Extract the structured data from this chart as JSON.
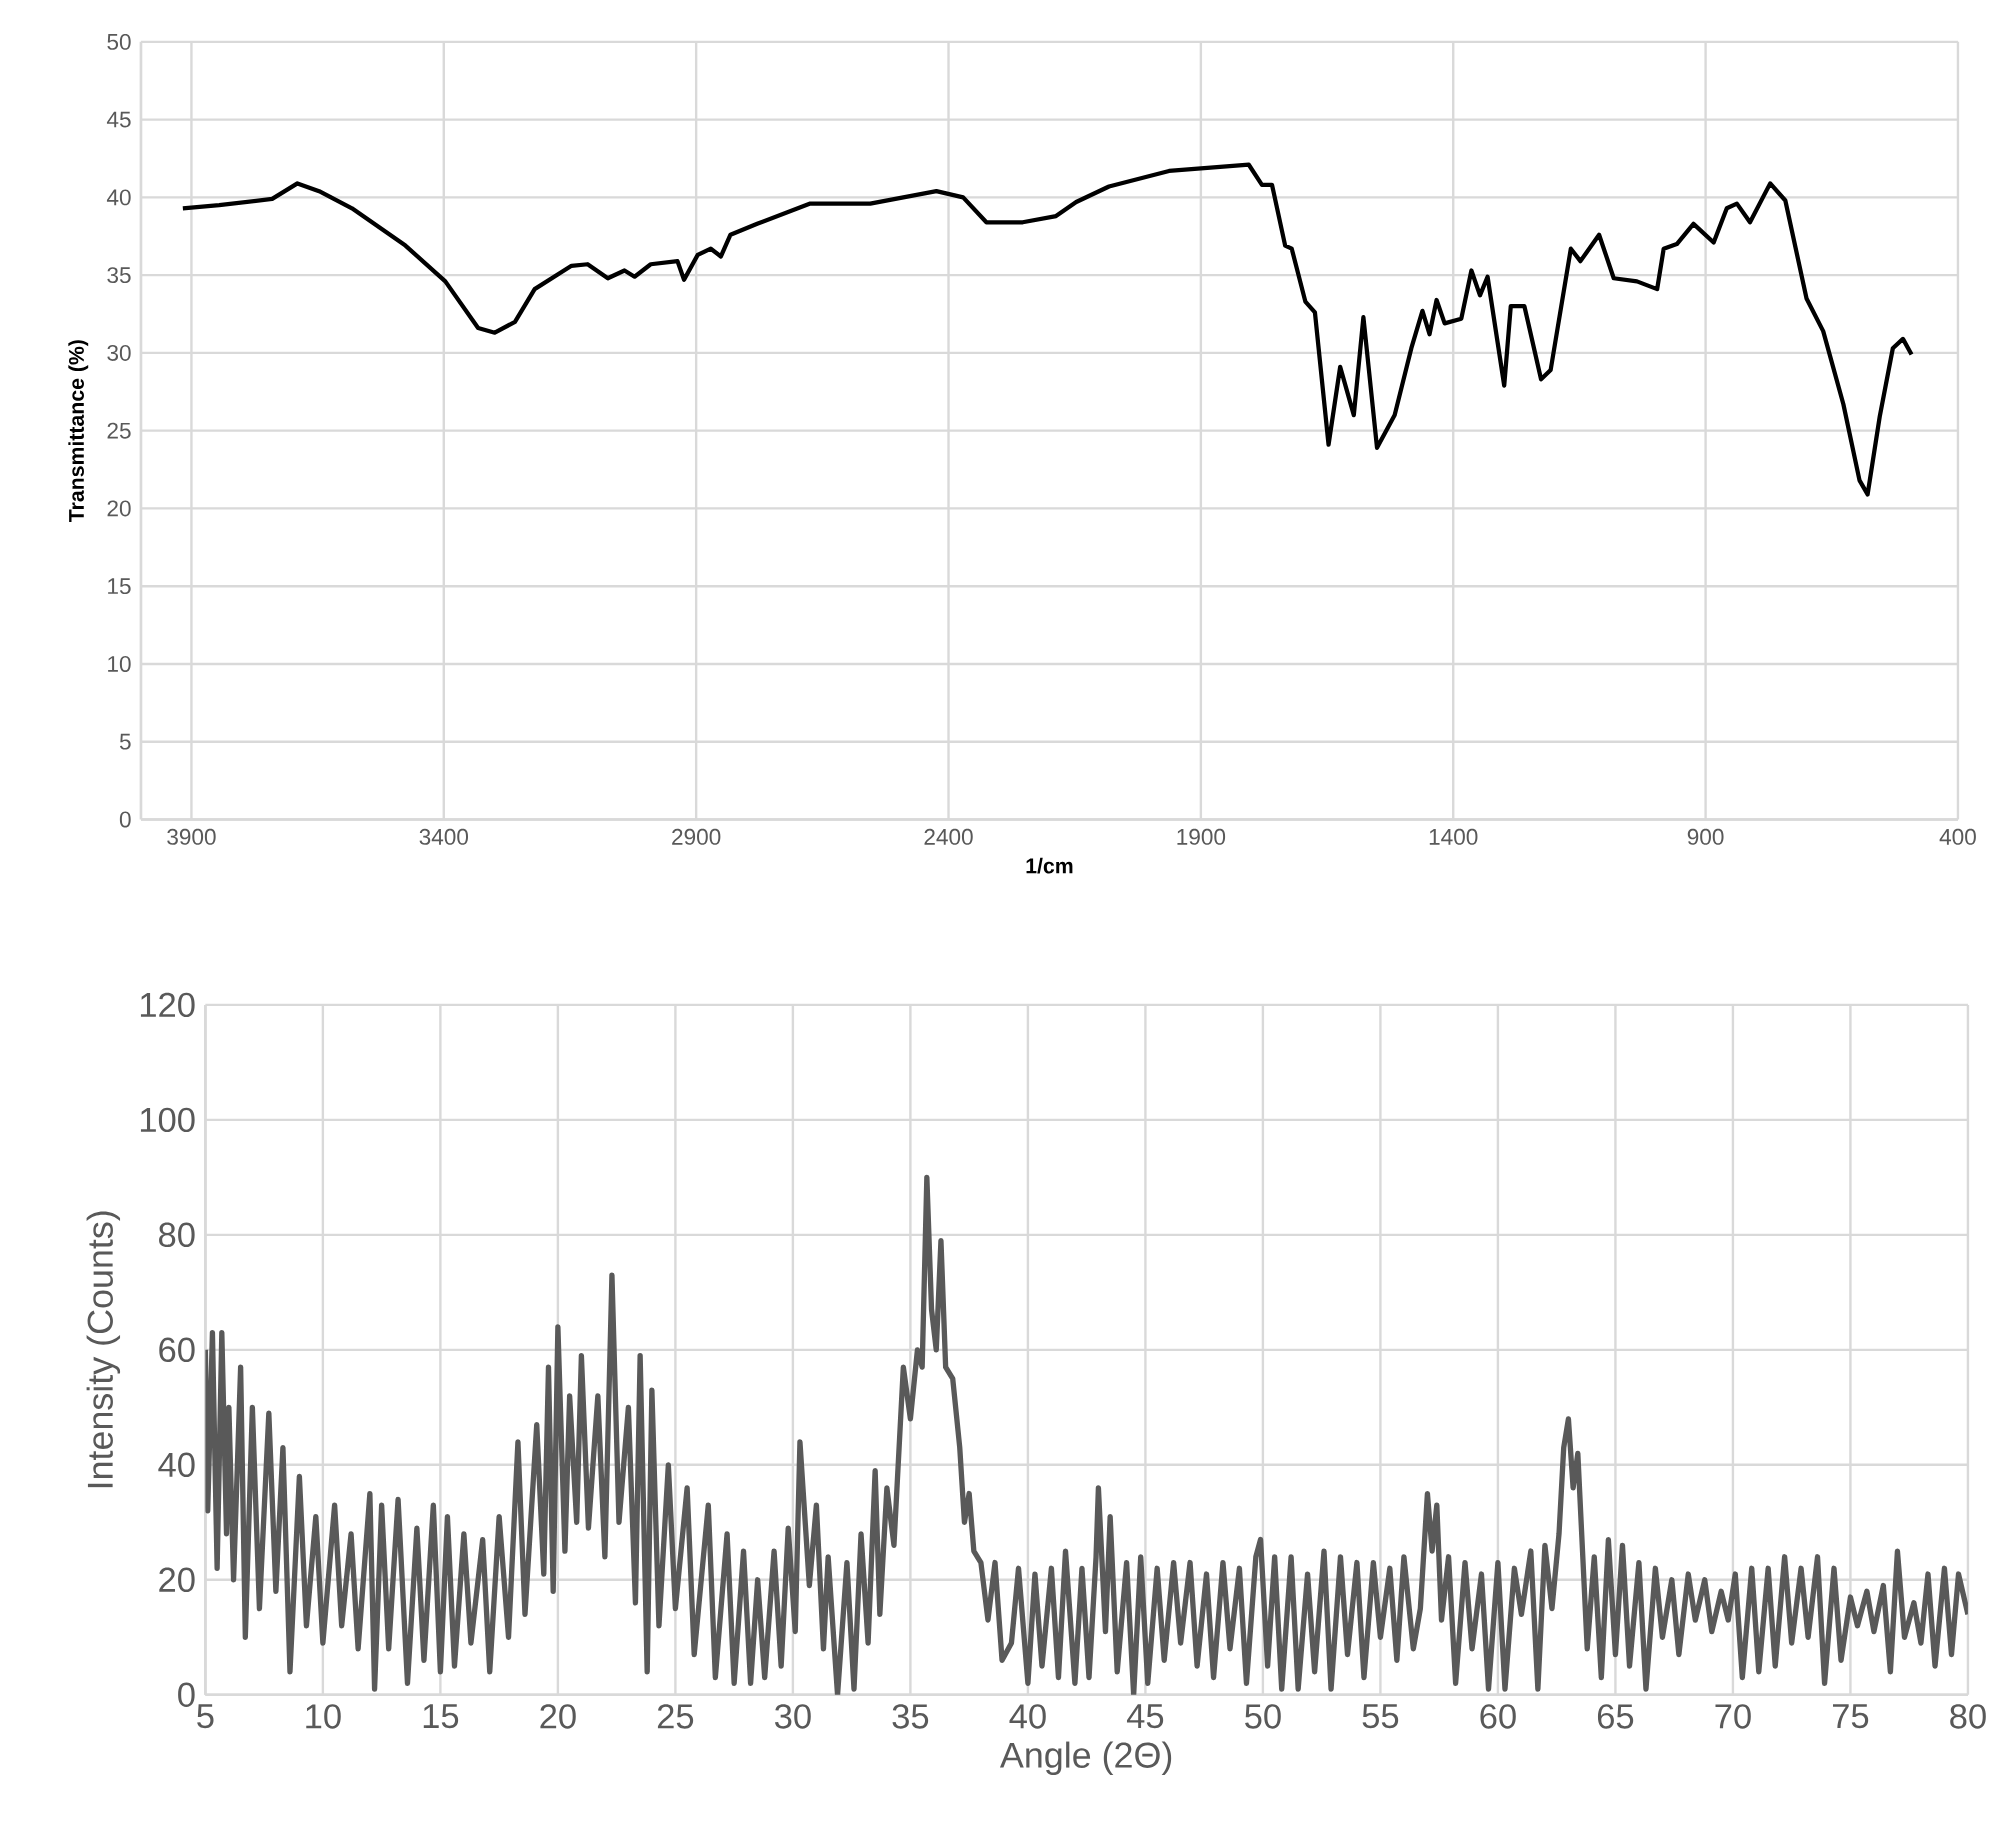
{
  "chart_data": [
    {
      "type": "line",
      "xlabel": "1/cm",
      "ylabel": "Transmittance (%)",
      "xlim": [
        4000,
        400
      ],
      "ylim": [
        0,
        50
      ],
      "xticks": [
        3900,
        3400,
        2900,
        2400,
        1900,
        1400,
        900,
        400
      ],
      "yticks": [
        0,
        5,
        10,
        15,
        20,
        25,
        30,
        35,
        40,
        45,
        50
      ],
      "grid": true,
      "x": [
        3917,
        3845,
        3740,
        3690,
        3647,
        3582,
        3476,
        3397,
        3332,
        3299,
        3259,
        3220,
        3147,
        3115,
        3075,
        3042,
        3022,
        2990,
        2937,
        2924,
        2897,
        2871,
        2851,
        2832,
        2779,
        2674,
        2555,
        2424,
        2371,
        2325,
        2253,
        2187,
        2147,
        2082,
        1963,
        1805,
        1779,
        1759,
        1733,
        1720,
        1693,
        1674,
        1647,
        1624,
        1597,
        1578,
        1551,
        1516,
        1483,
        1461,
        1447,
        1433,
        1417,
        1384,
        1364,
        1347,
        1332,
        1299,
        1286,
        1259,
        1226,
        1207,
        1167,
        1148,
        1111,
        1082,
        1036,
        996,
        983,
        957,
        924,
        884,
        858,
        838,
        812,
        772,
        742,
        700,
        667,
        627,
        595,
        579,
        555,
        529,
        509,
        492
      ],
      "series": [
        {
          "color": "#000000",
          "values": [
            39.3,
            39.5,
            39.9,
            40.9,
            40.4,
            39.3,
            36.9,
            34.6,
            31.6,
            31.3,
            32.0,
            34.1,
            35.6,
            35.7,
            34.8,
            35.3,
            34.9,
            35.7,
            35.9,
            34.7,
            36.3,
            36.7,
            36.2,
            37.6,
            38.3,
            39.6,
            39.6,
            40.4,
            40.0,
            38.4,
            38.4,
            38.8,
            39.7,
            40.7,
            41.7,
            42.1,
            40.8,
            40.8,
            36.9,
            36.7,
            33.3,
            32.6,
            24.1,
            29.1,
            26.0,
            32.3,
            23.9,
            26.0,
            30.3,
            32.7,
            31.2,
            33.4,
            31.9,
            32.2,
            35.3,
            33.7,
            34.9,
            27.9,
            33.0,
            33.0,
            28.3,
            28.9,
            36.7,
            35.9,
            37.6,
            34.8,
            34.6,
            34.1,
            36.7,
            37.0,
            38.3,
            37.1,
            39.3,
            39.6,
            38.4,
            40.9,
            39.8,
            33.5,
            31.4,
            26.7,
            21.8,
            20.9,
            25.9,
            30.3,
            30.9,
            29.9
          ]
        }
      ]
    },
    {
      "type": "line",
      "xlabel": "Angle (2Θ)",
      "ylabel": "Intensity (Counts)",
      "xlim": [
        5,
        80
      ],
      "ylim": [
        0,
        120
      ],
      "xticks": [
        5,
        10,
        15,
        20,
        25,
        30,
        35,
        40,
        45,
        50,
        55,
        60,
        65,
        70,
        75,
        80
      ],
      "yticks": [
        0,
        20,
        40,
        60,
        80,
        100,
        120
      ],
      "grid": true,
      "x": [
        5.0,
        5.1,
        5.3,
        5.5,
        5.7,
        5.9,
        6.0,
        6.2,
        6.5,
        6.7,
        7.0,
        7.3,
        7.7,
        8.0,
        8.3,
        8.6,
        9.0,
        9.3,
        9.7,
        10.0,
        10.5,
        10.8,
        11.2,
        11.5,
        12.0,
        12.2,
        12.5,
        12.8,
        13.2,
        13.6,
        14.0,
        14.3,
        14.7,
        15.0,
        15.3,
        15.6,
        16.0,
        16.3,
        16.8,
        17.1,
        17.5,
        17.9,
        18.3,
        18.6,
        19.1,
        19.4,
        19.6,
        19.8,
        20.0,
        20.3,
        20.5,
        20.8,
        21.0,
        21.3,
        21.7,
        22.0,
        22.3,
        22.6,
        23.0,
        23.3,
        23.5,
        23.8,
        24.0,
        24.3,
        24.7,
        25.0,
        25.5,
        25.8,
        26.4,
        26.7,
        27.2,
        27.5,
        27.9,
        28.2,
        28.5,
        28.8,
        29.2,
        29.5,
        29.8,
        30.1,
        30.3,
        30.7,
        31.0,
        31.3,
        31.5,
        31.9,
        32.3,
        32.6,
        32.9,
        33.2,
        33.5,
        33.7,
        34.0,
        34.3,
        34.7,
        35.0,
        35.3,
        35.5,
        35.7,
        35.9,
        36.1,
        36.3,
        36.5,
        36.8,
        37.1,
        37.3,
        37.5,
        37.7,
        38.0,
        38.3,
        38.6,
        38.9,
        39.3,
        39.6,
        40.0,
        40.3,
        40.6,
        41.0,
        41.3,
        41.6,
        42.0,
        42.3,
        42.6,
        42.9,
        43.0,
        43.3,
        43.5,
        43.8,
        44.2,
        44.5,
        44.8,
        45.1,
        45.5,
        45.8,
        46.2,
        46.5,
        46.9,
        47.2,
        47.6,
        47.9,
        48.3,
        48.6,
        49.0,
        49.3,
        49.7,
        49.9,
        50.2,
        50.5,
        50.8,
        51.2,
        51.5,
        51.9,
        52.2,
        52.6,
        52.9,
        53.3,
        53.6,
        54.0,
        54.3,
        54.7,
        55.0,
        55.4,
        55.7,
        56.0,
        56.4,
        56.7,
        57.0,
        57.2,
        57.4,
        57.6,
        57.9,
        58.2,
        58.6,
        58.9,
        59.3,
        59.6,
        60.0,
        60.3,
        60.7,
        61.0,
        61.4,
        61.7,
        62.0,
        62.3,
        62.6,
        62.8,
        63.0,
        63.2,
        63.4,
        63.6,
        63.8,
        64.1,
        64.4,
        64.7,
        65.0,
        65.3,
        65.6,
        66.0,
        66.3,
        66.7,
        67.0,
        67.4,
        67.7,
        68.1,
        68.4,
        68.8,
        69.1,
        69.5,
        69.8,
        70.1,
        70.4,
        70.8,
        71.1,
        71.5,
        71.8,
        72.2,
        72.5,
        72.9,
        73.2,
        73.6,
        73.9,
        74.3,
        74.6,
        75.0,
        75.3,
        75.7,
        76.0,
        76.4,
        76.7,
        77.0,
        77.3,
        77.7,
        78.0,
        78.3,
        78.6,
        79.0,
        79.3,
        79.6,
        80.0
      ],
      "series": [
        {
          "color": "#595959",
          "values": [
            60,
            32,
            63,
            22,
            63,
            28,
            50,
            20,
            57,
            10,
            50,
            15,
            49,
            18,
            43,
            4,
            38,
            12,
            31,
            9,
            33,
            12,
            28,
            8,
            35,
            1,
            33,
            8,
            34,
            2,
            29,
            6,
            33,
            4,
            31,
            5,
            28,
            9,
            27,
            4,
            31,
            10,
            44,
            14,
            47,
            21,
            57,
            18,
            64,
            25,
            52,
            30,
            59,
            29,
            52,
            24,
            73,
            30,
            50,
            16,
            59,
            4,
            53,
            12,
            40,
            15,
            36,
            7,
            33,
            3,
            28,
            2,
            25,
            2,
            20,
            3,
            25,
            5,
            29,
            11,
            44,
            19,
            33,
            8,
            24,
            0,
            23,
            1,
            28,
            9,
            39,
            14,
            36,
            26,
            57,
            48,
            60,
            57,
            90,
            67,
            60,
            79,
            57,
            55,
            43,
            30,
            35,
            25,
            23,
            13,
            23,
            6,
            9,
            22,
            2,
            21,
            5,
            22,
            3,
            25,
            2,
            22,
            3,
            24,
            36,
            11,
            31,
            4,
            23,
            0,
            24,
            2,
            22,
            6,
            23,
            9,
            23,
            5,
            21,
            3,
            23,
            8,
            22,
            2,
            24,
            27,
            5,
            24,
            1,
            24,
            1,
            21,
            4,
            25,
            1,
            24,
            7,
            23,
            3,
            23,
            10,
            22,
            6,
            24,
            8,
            15,
            35,
            25,
            33,
            13,
            24,
            2,
            23,
            8,
            21,
            1,
            23,
            1,
            22,
            14,
            25,
            1,
            26,
            15,
            28,
            43,
            48,
            36,
            42,
            25,
            8,
            24,
            3,
            27,
            7,
            26,
            5,
            23,
            1,
            22,
            10,
            20,
            7,
            21,
            13,
            20,
            11,
            18,
            13,
            21,
            3,
            22,
            4,
            22,
            5,
            24,
            9,
            22,
            10,
            24,
            2,
            22,
            6,
            17,
            12,
            18,
            11,
            19,
            4,
            25,
            10,
            16,
            9,
            21,
            5,
            22,
            7,
            21,
            14
          ]
        }
      ]
    }
  ]
}
